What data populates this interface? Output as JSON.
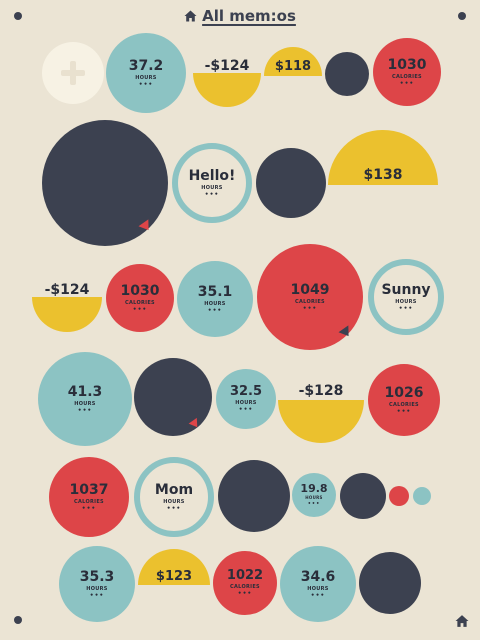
{
  "header": {
    "title": "All mem:os",
    "icon": "home-icon"
  },
  "footer": {
    "icon": "home-icon"
  },
  "add_memo": {
    "icon": "plus-icon"
  },
  "colors": {
    "navy": "#3c4150",
    "red": "#dd4548",
    "teal": "#8cc3c3",
    "yellow": "#ebc12e",
    "cream": "#f7f2e4",
    "background": "#ebe4d4"
  },
  "memos": {
    "r1_hours": {
      "value": "37.2",
      "unit": "HOURS",
      "more": "•••"
    },
    "r1_money_neg": {
      "value": "-$124"
    },
    "r1_money_pos": {
      "value": "$118"
    },
    "r1_calories": {
      "value": "1030",
      "unit": "CALORIES",
      "more": "•••"
    },
    "r2_hello": {
      "value": "Hello!",
      "unit": "HOURS",
      "more": "•••"
    },
    "r2_money": {
      "value": "$138"
    },
    "r3_money_neg": {
      "value": "-$124"
    },
    "r3_calories": {
      "value": "1030",
      "unit": "CALORIES",
      "more": "•••"
    },
    "r3_hours": {
      "value": "35.1",
      "unit": "HOURS",
      "more": "•••"
    },
    "r3_calories_big": {
      "value": "1049",
      "unit": "CALORIES",
      "more": "•••"
    },
    "r3_sunny": {
      "value": "Sunny",
      "unit": "HOURS",
      "more": "•••"
    },
    "r4_hours": {
      "value": "41.3",
      "unit": "HOURS",
      "more": "•••"
    },
    "r4_hours_small": {
      "value": "32.5",
      "unit": "HOURS",
      "more": "•••"
    },
    "r4_money_neg": {
      "value": "-$128"
    },
    "r4_calories": {
      "value": "1026",
      "unit": "CALORIES",
      "more": "•••"
    },
    "r5_calories": {
      "value": "1037",
      "unit": "CALORIES",
      "more": "•••"
    },
    "r5_mom": {
      "value": "Mom",
      "unit": "HOURS",
      "more": "•••"
    },
    "r5_hours": {
      "value": "19.8",
      "unit": "HOURS",
      "more": "•••"
    },
    "r6_hours": {
      "value": "35.3",
      "unit": "HOURS",
      "more": "•••"
    },
    "r6_money": {
      "value": "$123"
    },
    "r6_calories": {
      "value": "1022",
      "unit": "CALORIES",
      "more": "•••"
    },
    "r6_hours_b": {
      "value": "34.6",
      "unit": "HOURS",
      "more": "•••"
    }
  }
}
